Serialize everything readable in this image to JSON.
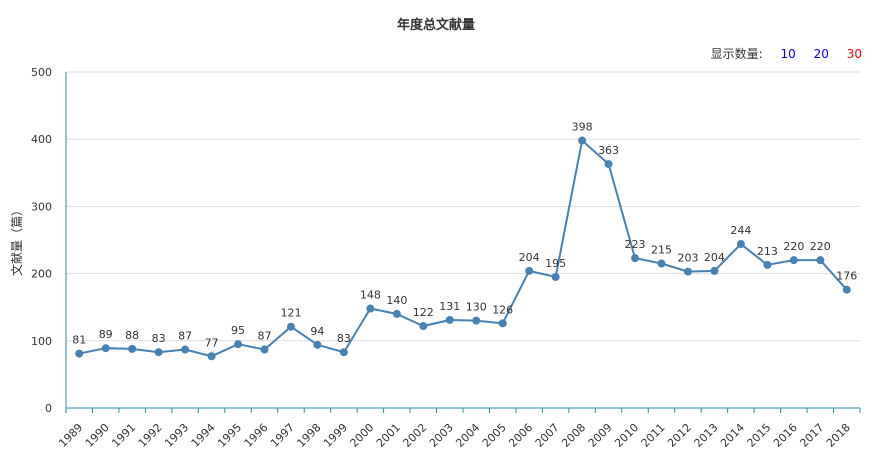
{
  "title": "年度总文献量",
  "controls": {
    "label": "显示数量:",
    "options": [
      {
        "label": "10",
        "color": "#0000ee"
      },
      {
        "label": "20",
        "color": "#0000ee"
      },
      {
        "label": "30",
        "color": "#ff0000"
      }
    ]
  },
  "colors": {
    "line": "#4682b4",
    "axis": "#2a8ca8",
    "grid": "#dddddd"
  },
  "chart_data": {
    "type": "line",
    "title": "年度总文献量",
    "xlabel": "",
    "ylabel": "文献量（篇）",
    "ylim": [
      0,
      500
    ],
    "yticks": [
      0,
      100,
      200,
      300,
      400,
      500
    ],
    "grid": true,
    "x": [
      "1989",
      "1990",
      "1991",
      "1992",
      "1993",
      "1994",
      "1995",
      "1996",
      "1997",
      "1998",
      "1999",
      "2000",
      "2001",
      "2002",
      "2003",
      "2004",
      "2005",
      "2006",
      "2007",
      "2008",
      "2009",
      "2010",
      "2011",
      "2012",
      "2013",
      "2014",
      "2015",
      "2016",
      "2017",
      "2018"
    ],
    "values": [
      81,
      89,
      88,
      83,
      87,
      77,
      95,
      87,
      121,
      94,
      83,
      148,
      140,
      122,
      131,
      130,
      126,
      204,
      195,
      398,
      363,
      223,
      215,
      203,
      204,
      244,
      213,
      220,
      220,
      176
    ]
  }
}
